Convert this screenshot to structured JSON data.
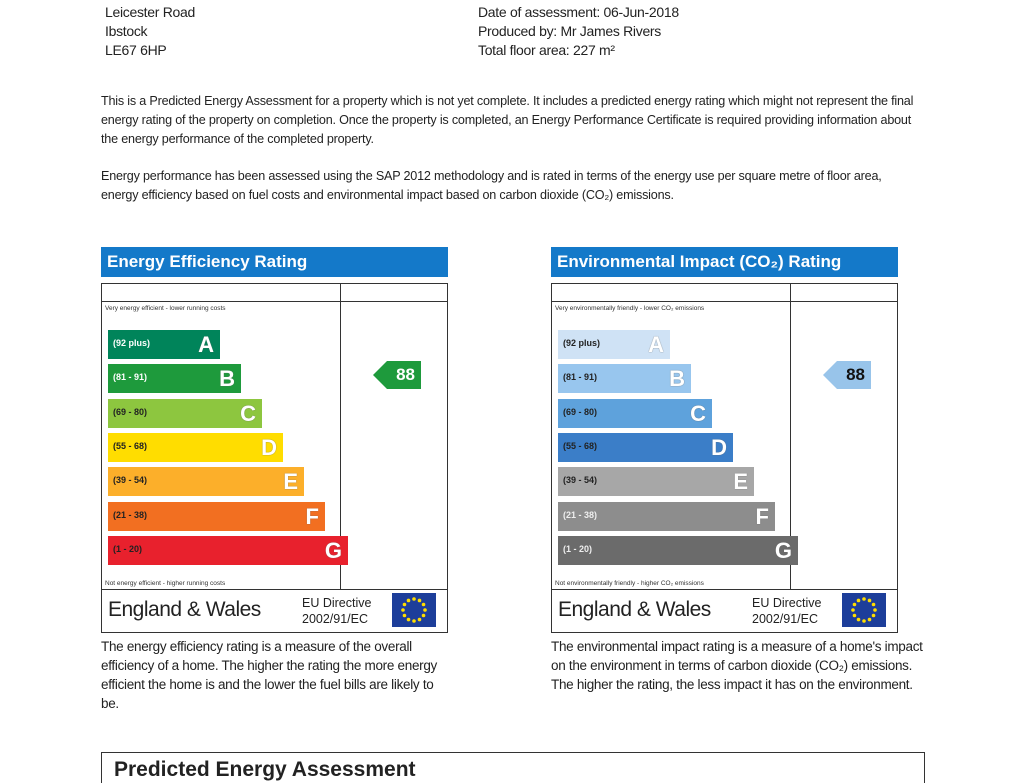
{
  "address": {
    "lines": [
      "Leicester Road",
      "Ibstock",
      "LE67 6HP"
    ]
  },
  "details": {
    "date": "Date of assessment: 06-Jun-2018",
    "produced_by": "Produced by: Mr James Rivers",
    "floor_area": "Total floor area: 227 m²"
  },
  "intro": {
    "p1": "This is a Predicted Energy Assessment for a property which is not yet complete. It includes a predicted energy rating which might not represent the final energy rating of the property on completion. Once the property is completed, an Energy Performance Certificate is required providing information about the energy performance of the completed property.",
    "p2": "Energy performance has been assessed using the SAP 2012 methodology and is rated in terms of the energy use per square metre of floor area, energy efficiency based on fuel costs and environmental impact based on carbon dioxide (CO₂) emissions."
  },
  "charts": [
    {
      "title": "Energy Efficiency Rating",
      "top_label": "Very energy efficient - lower running costs",
      "bottom_label": "Not energy efficient - higher running costs",
      "rating": "88",
      "rating_band": "B",
      "rating_color": "#1e9a3c",
      "region": "England & Wales",
      "directive": "EU Directive",
      "directive_code": "2002/91/EC",
      "description": "The energy efficiency rating is a measure of the overall efficiency of a home. The higher the rating the more energy efficient the home is and the lower the fuel bills are likely to be.",
      "bands": [
        {
          "range": "(92 plus)",
          "letter": "A",
          "color": "#00845a",
          "text": "#fff"
        },
        {
          "range": "(81 - 91)",
          "letter": "B",
          "color": "#1e9a3c",
          "text": "#fff"
        },
        {
          "range": "(69 - 80)",
          "letter": "C",
          "color": "#8dc63f",
          "text": "#222"
        },
        {
          "range": "(55 - 68)",
          "letter": "D",
          "color": "#ffdd00",
          "text": "#222"
        },
        {
          "range": "(39 - 54)",
          "letter": "E",
          "color": "#fcaf2a",
          "text": "#222"
        },
        {
          "range": "(21 - 38)",
          "letter": "F",
          "color": "#f26f21",
          "text": "#222"
        },
        {
          "range": "(1 - 20)",
          "letter": "G",
          "color": "#e8212d",
          "text": "#222"
        }
      ]
    },
    {
      "title": "Environmental Impact (CO₂) Rating",
      "top_label": "Very environmentally friendly - lower CO₂ emissions",
      "bottom_label": "Not environmentally friendly - higher CO₂ emissions",
      "rating": "88",
      "rating_band": "B",
      "rating_color": "#98c4ea",
      "region": "England & Wales",
      "directive": "EU Directive",
      "directive_code": "2002/91/EC",
      "description": "The environmental impact rating is a measure of a home's impact on the environment in terms of carbon dioxide (CO₂) emissions. The higher the rating, the less impact it has on the environment.",
      "bands": [
        {
          "range": "(92 plus)",
          "letter": "A",
          "color": "#cfe2f5",
          "text": "#222"
        },
        {
          "range": "(81 - 91)",
          "letter": "B",
          "color": "#98c6ee",
          "text": "#222"
        },
        {
          "range": "(69 - 80)",
          "letter": "C",
          "color": "#5ea2dc",
          "text": "#222"
        },
        {
          "range": "(55 - 68)",
          "letter": "D",
          "color": "#3b7ec8",
          "text": "#222"
        },
        {
          "range": "(39 - 54)",
          "letter": "E",
          "color": "#a7a7a7",
          "text": "#222"
        },
        {
          "range": "(21 - 38)",
          "letter": "F",
          "color": "#8d8d8d",
          "text": "#eee"
        },
        {
          "range": "(1 - 20)",
          "letter": "G",
          "color": "#6b6b6b",
          "text": "#eee"
        }
      ]
    }
  ],
  "next_section": {
    "title": "Predicted Energy Assessment"
  }
}
